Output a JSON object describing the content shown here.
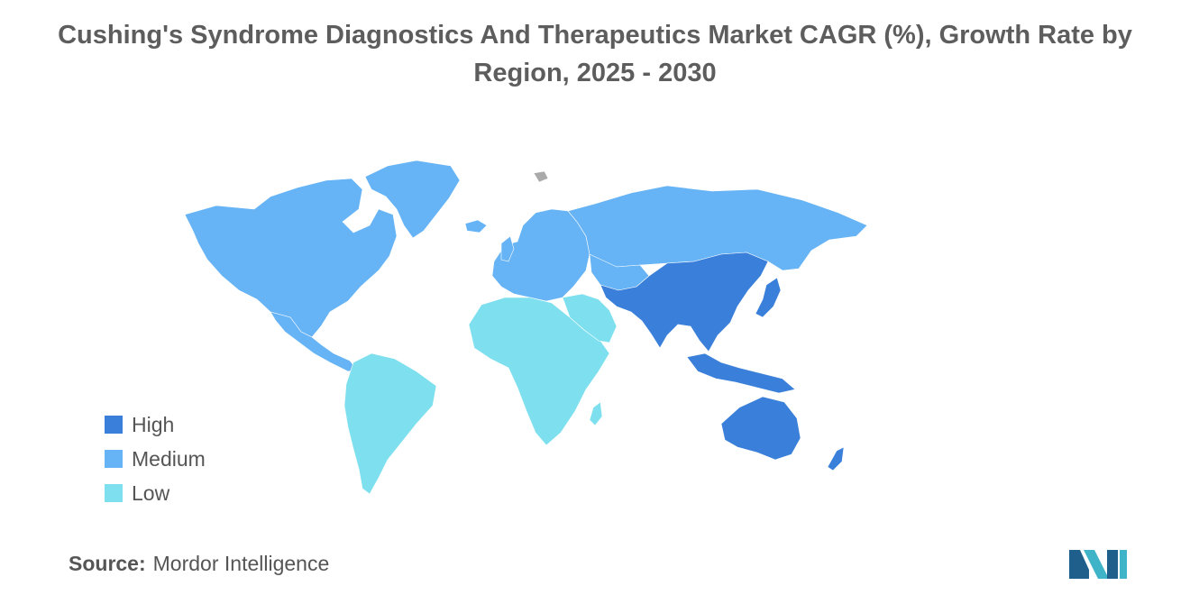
{
  "title": "Cushing's Syndrome Diagnostics And Therapeutics Market CAGR (%), Growth Rate by Region, 2025 - 2030",
  "legend": {
    "items": [
      {
        "label": "High",
        "color": "#3a7fd9"
      },
      {
        "label": "Medium",
        "color": "#66b3f5"
      },
      {
        "label": "Low",
        "color": "#7ee0ee"
      }
    ]
  },
  "regions": {
    "north_america": "Medium",
    "greenland": "Medium",
    "europe": "Medium",
    "russia": "Medium",
    "central_asia": "Medium",
    "south_america": "Low",
    "africa": "Low",
    "middle_east": "Low",
    "asia_pacific": "High",
    "australia": "High",
    "new_zealand": "High"
  },
  "colors": {
    "no_data": "#aaaaaa",
    "title_text": "#5d5d5d",
    "body_text": "#555555",
    "logo_dark": "#1f5f8b",
    "logo_light": "#3fb4c8"
  },
  "source": {
    "label": "Source:",
    "value": "Mordor Intelligence"
  },
  "logo_icon": "mordor-intelligence-logo-icon"
}
